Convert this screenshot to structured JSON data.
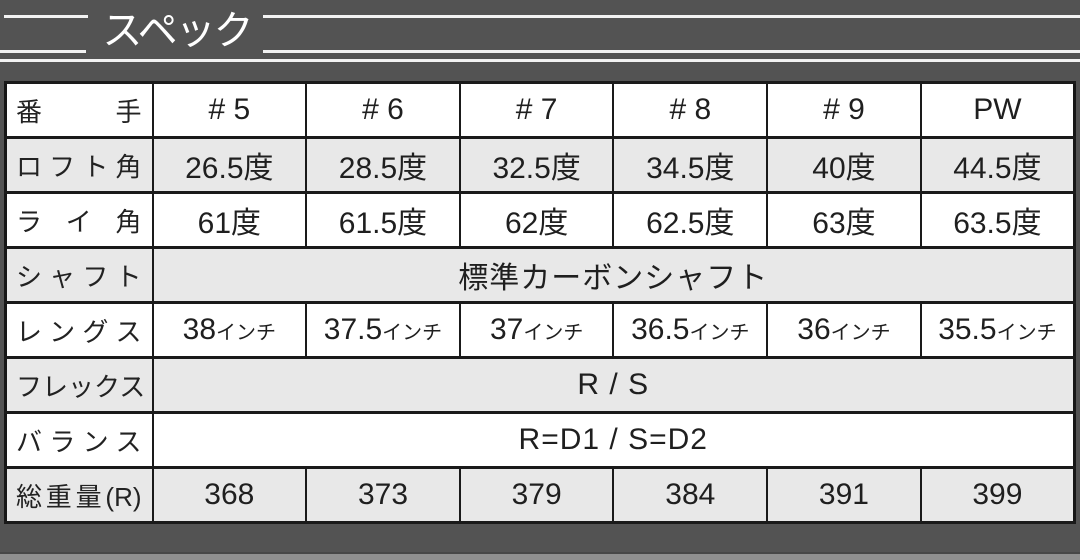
{
  "title": {
    "text": "スペック"
  },
  "colors": {
    "page_background": "#535353",
    "row_alternate": "#e8e8e8",
    "row_base": "#ffffff",
    "table_border": "#1a1a1a",
    "header_line": "#f2f2f2",
    "title_text": "#ffffff",
    "cell_text": "#1f1f1f"
  },
  "spec_table": {
    "rows": [
      {
        "label": "番手",
        "cells": [
          "# 5",
          "# 6",
          "# 7",
          "# 8",
          "# 9",
          "PW"
        ]
      },
      {
        "label": "ロフト角",
        "cells": [
          "26.5度",
          "28.5度",
          "32.5度",
          "34.5度",
          "40度",
          "44.5度"
        ]
      },
      {
        "label": "ライ角",
        "cells": [
          "61度",
          "61.5度",
          "62度",
          "62.5度",
          "63度",
          "63.5度"
        ]
      },
      {
        "label": "シャフト",
        "span_text": "標準カーボンシャフト"
      },
      {
        "label": "レングス",
        "cells": [
          "38",
          "37.5",
          "37",
          "36.5",
          "36",
          "35.5"
        ],
        "unit": "インチ"
      },
      {
        "label": "フレックス",
        "span_text": "R / S"
      },
      {
        "label": "バランス",
        "span_text": "R=D1 / S=D2"
      },
      {
        "label": "総重量(R)",
        "cells": [
          "368",
          "373",
          "379",
          "384",
          "391",
          "399"
        ]
      }
    ]
  }
}
